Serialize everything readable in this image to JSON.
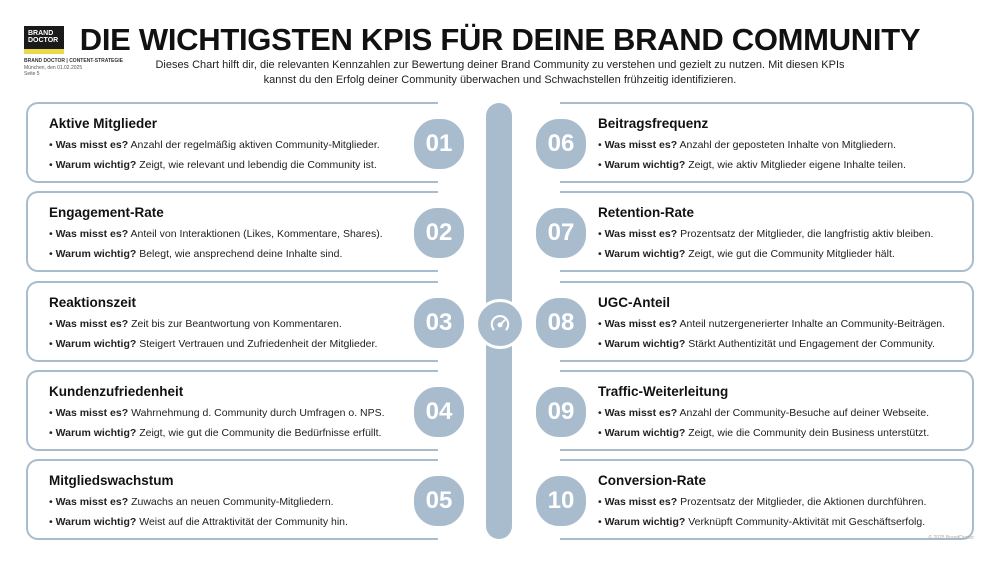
{
  "brand": {
    "logo_line1": "BRAND",
    "logo_line2": "DOCTOR",
    "company_line": "BRAND DOCTOR | CONTENT-STRATEGIE",
    "place_date": "München, den 01.02.2025",
    "page": "Seite 5"
  },
  "title": "DIE WICHTIGSTEN KPIS FÜR DEINE BRAND COMMUNITY",
  "subtitle": "Dieses Chart hilft dir, die relevanten Kennzahlen zur Bewertung deiner Brand Community zu verstehen und gezielt zu nutzen. Mit diesen KPIs kannst du den Erfolg deiner Community überwachen und Schwachstellen frühzeitig identifizieren.",
  "labels": {
    "what": "Was misst es?",
    "why": "Warum wichtig?"
  },
  "kpis": [
    {
      "num": "01",
      "name": "Aktive Mitglieder",
      "what": "Anzahl der regelmäßig aktiven Community-Mitglieder.",
      "why": "Zeigt, wie relevant und lebendig die Community ist."
    },
    {
      "num": "02",
      "name": "Engagement-Rate",
      "what": "Anteil von Interaktionen (Likes, Kommentare, Shares).",
      "why": "Belegt, wie ansprechend deine Inhalte sind."
    },
    {
      "num": "03",
      "name": "Reaktionszeit",
      "what": "Zeit bis zur Beantwortung von Kommentaren.",
      "why": "Steigert Vertrauen und Zufriedenheit der Mitglieder."
    },
    {
      "num": "04",
      "name": "Kundenzufriedenheit",
      "what": "Wahrnehmung d. Community durch Umfragen o. NPS.",
      "why": "Zeigt, wie gut die Community die Bedürfnisse erfüllt."
    },
    {
      "num": "05",
      "name": "Mitgliedswachstum",
      "what": "Zuwachs an neuen Community-Mitgliedern.",
      "why": "Weist auf die Attraktivität der Community hin."
    },
    {
      "num": "06",
      "name": "Beitragsfrequenz",
      "what": "Anzahl der geposteten Inhalte von Mitgliedern.",
      "why": "Zeigt, wie aktiv Mitglieder eigene Inhalte teilen."
    },
    {
      "num": "07",
      "name": "Retention-Rate",
      "what": "Prozentsatz der Mitglieder, die langfristig aktiv bleiben.",
      "why": "Zeigt, wie gut die Community Mitglieder hält."
    },
    {
      "num": "08",
      "name": "UGC-Anteil",
      "what": "Anteil nutzergenerierter Inhalte an Community-Beiträgen.",
      "why": "Stärkt Authentizität und Engagement der Community."
    },
    {
      "num": "09",
      "name": "Traffic-Weiterleitung",
      "what": "Anzahl der Community-Besuche auf deiner Webseite.",
      "why": "Zeigt, wie die Community dein Business unterstützt."
    },
    {
      "num": "10",
      "name": "Conversion-Rate",
      "what": "Prozentsatz der Mitglieder, die Aktionen durchführen.",
      "why": "Verknüpft Community-Aktivität mit Geschäftserfolg."
    }
  ],
  "hub_icon": "gauge-icon",
  "copyright": "© 2025 BrandDoctor",
  "colors": {
    "accent": "#a9bccd",
    "logo_bg": "#1a1a1a",
    "logo_stripe": "#e8d84a"
  }
}
